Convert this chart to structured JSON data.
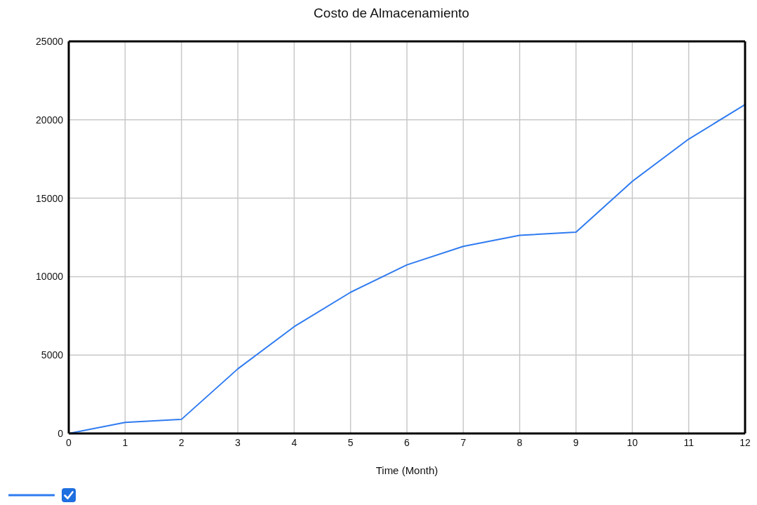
{
  "chart_data": {
    "type": "line",
    "title": "Costo de Almacenamiento",
    "xlabel": "Time (Month)",
    "x": [
      0,
      1,
      2,
      3,
      4,
      5,
      6,
      7,
      8,
      9,
      10,
      11,
      12
    ],
    "series": [
      {
        "color": "#2f7bf0",
        "values": [
          0,
          700,
          900,
          4120,
          6810,
          9000,
          10750,
          11930,
          12630,
          12840,
          16080,
          18770,
          20970
        ]
      }
    ],
    "xlim": [
      0,
      12
    ],
    "xticks": [
      0,
      1,
      2,
      3,
      4,
      5,
      6,
      7,
      8,
      9,
      10,
      11,
      12
    ],
    "ylim": [
      0,
      25000
    ],
    "yticks": [
      0,
      5000,
      10000,
      15000,
      20000,
      25000
    ],
    "grid": true,
    "marker": "none",
    "line_style": "solid"
  }
}
